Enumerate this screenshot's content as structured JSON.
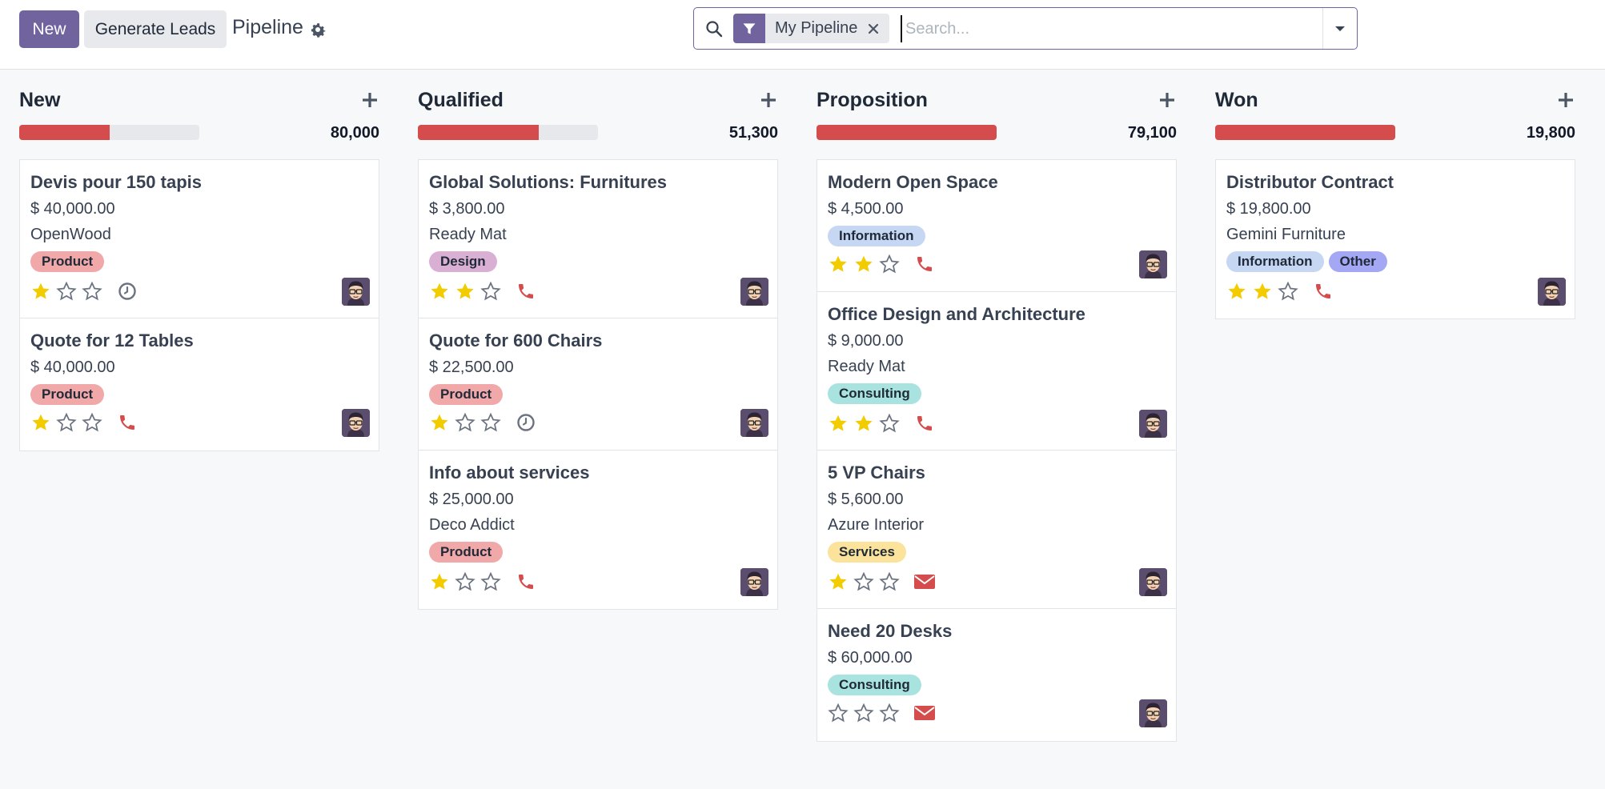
{
  "control_panel": {
    "new_label": "New",
    "generate_leads_label": "Generate Leads",
    "breadcrumb": "Pipeline",
    "search": {
      "facet_value": "My Pipeline",
      "placeholder": "Search..."
    }
  },
  "colors": {
    "primary": "#71639e",
    "progress_red": "#d44c4c",
    "star_filled": "#f3cc00",
    "activity_red": "#d44c4c",
    "tag_product": "#f1a8a8",
    "tag_design": "#d9b0d4",
    "tag_information": "#c6d7f4",
    "tag_consulting": "#a9e3e0",
    "tag_services": "#fbe39b",
    "tag_other": "#a4a7f3"
  },
  "columns": [
    {
      "title": "New",
      "total": "80,000",
      "progress_fraction": 0.5,
      "cards": [
        {
          "title": "Devis pour 150 tapis",
          "amount": "$ 40,000.00",
          "company": "OpenWood",
          "tags": [
            {
              "label": "Product",
              "color": "#f1a8a8"
            }
          ],
          "stars": 1,
          "activity": "clock"
        },
        {
          "title": "Quote for 12 Tables",
          "amount": "$ 40,000.00",
          "company": "",
          "tags": [
            {
              "label": "Product",
              "color": "#f1a8a8"
            }
          ],
          "stars": 1,
          "activity": "phone"
        }
      ]
    },
    {
      "title": "Qualified",
      "total": "51,300",
      "progress_fraction": 0.67,
      "cards": [
        {
          "title": "Global Solutions: Furnitures",
          "amount": "$ 3,800.00",
          "company": "Ready Mat",
          "tags": [
            {
              "label": "Design",
              "color": "#d9b0d4"
            }
          ],
          "stars": 2,
          "activity": "phone"
        },
        {
          "title": "Quote for 600 Chairs",
          "amount": "$ 22,500.00",
          "company": "",
          "tags": [
            {
              "label": "Product",
              "color": "#f1a8a8"
            }
          ],
          "stars": 1,
          "activity": "clock"
        },
        {
          "title": "Info about services",
          "amount": "$ 25,000.00",
          "company": "Deco Addict",
          "tags": [
            {
              "label": "Product",
              "color": "#f1a8a8"
            }
          ],
          "stars": 1,
          "activity": "phone"
        }
      ]
    },
    {
      "title": "Proposition",
      "total": "79,100",
      "progress_fraction": 1.0,
      "cards": [
        {
          "title": "Modern Open Space",
          "amount": "$ 4,500.00",
          "company": "",
          "tags": [
            {
              "label": "Information",
              "color": "#c6d7f4"
            }
          ],
          "stars": 2,
          "activity": "phone"
        },
        {
          "title": "Office Design and Architecture",
          "amount": "$ 9,000.00",
          "company": "Ready Mat",
          "tags": [
            {
              "label": "Consulting",
              "color": "#a9e3e0"
            }
          ],
          "stars": 2,
          "activity": "phone"
        },
        {
          "title": "5 VP Chairs",
          "amount": "$ 5,600.00",
          "company": "Azure Interior",
          "tags": [
            {
              "label": "Services",
              "color": "#fbe39b"
            }
          ],
          "stars": 1,
          "activity": "envelope"
        },
        {
          "title": "Need 20 Desks",
          "amount": "$ 60,000.00",
          "company": "",
          "tags": [
            {
              "label": "Consulting",
              "color": "#a9e3e0"
            }
          ],
          "stars": 0,
          "activity": "envelope"
        }
      ]
    },
    {
      "title": "Won",
      "total": "19,800",
      "progress_fraction": 1.0,
      "cards": [
        {
          "title": "Distributor Contract",
          "amount": "$ 19,800.00",
          "company": "Gemini Furniture",
          "tags": [
            {
              "label": "Information",
              "color": "#c6d7f4"
            },
            {
              "label": "Other",
              "color": "#a4a7f3"
            }
          ],
          "stars": 2,
          "activity": "phone"
        }
      ]
    }
  ]
}
